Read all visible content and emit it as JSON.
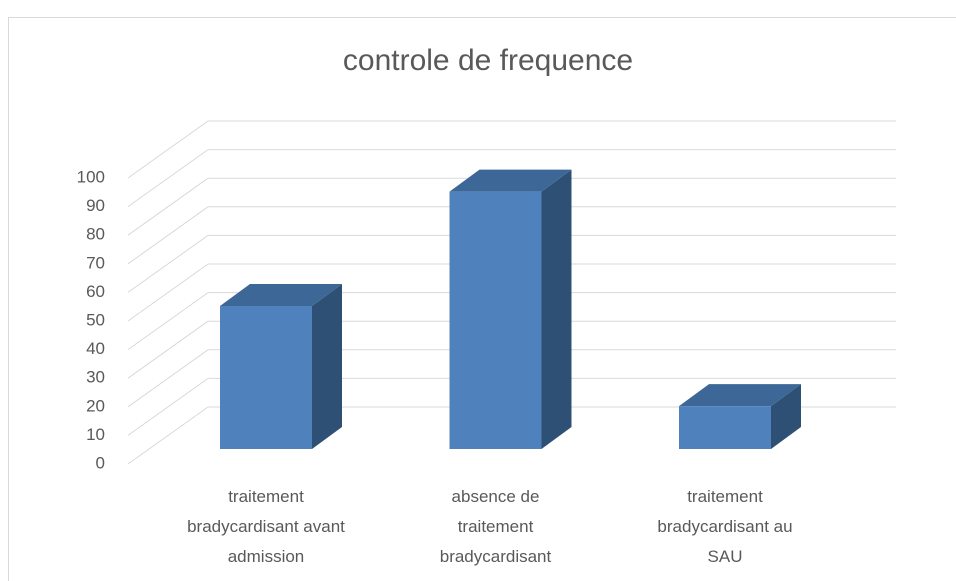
{
  "chart_data": {
    "type": "bar3d",
    "title": "controle de frequence",
    "categories": [
      "traitement\nbradycardisant avant\nadmission",
      "absence de\ntraitement\nbradycardisant",
      "traitement\nbradycardisant au\nSAU"
    ],
    "values": [
      50,
      90,
      15
    ],
    "color": "#4f81bd",
    "ylim": [
      0,
      100
    ],
    "yticks": [
      0,
      10,
      20,
      30,
      40,
      50,
      60,
      70,
      80,
      90,
      100
    ],
    "grid": true
  }
}
